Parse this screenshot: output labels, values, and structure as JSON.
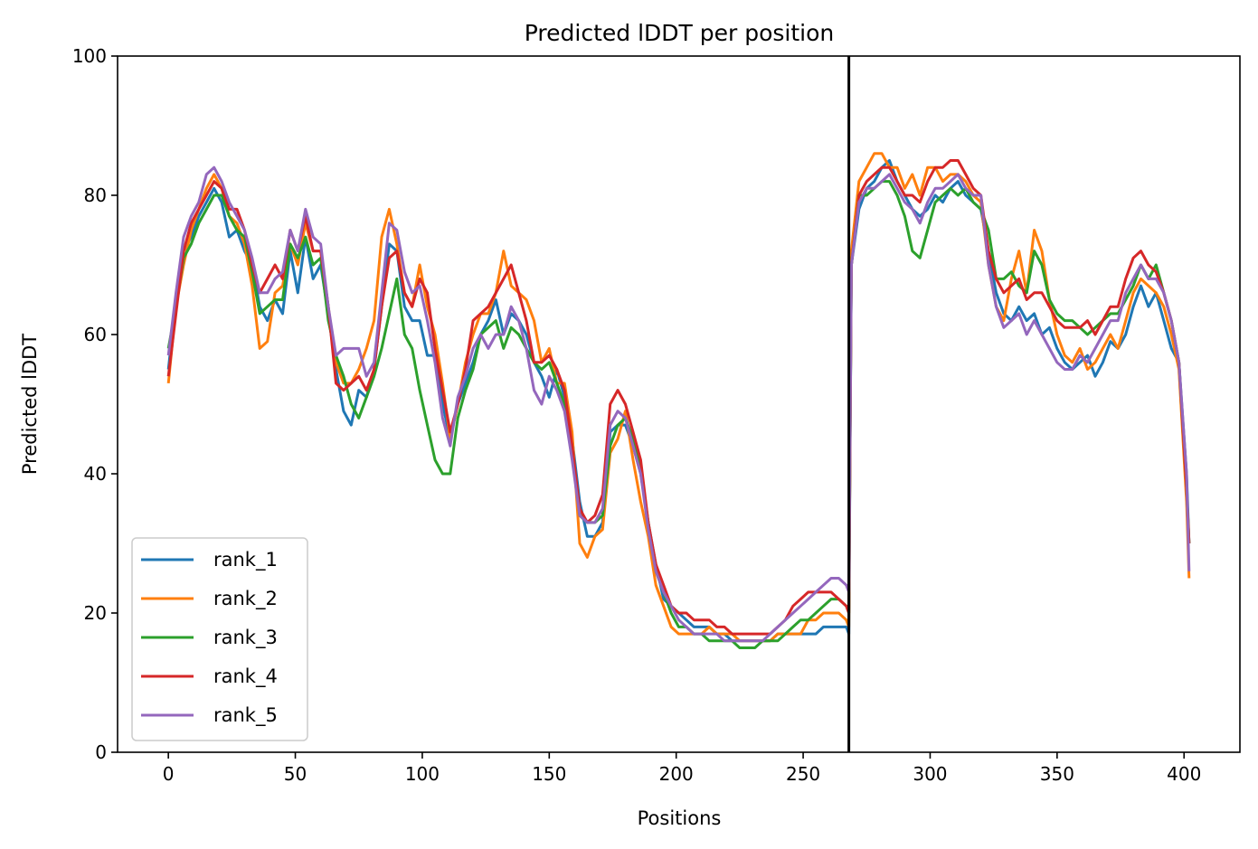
{
  "chart_data": {
    "type": "line",
    "title": "Predicted lDDT per position",
    "xlabel": "Positions",
    "ylabel": "Predicted lDDT",
    "xlim": [
      -20,
      422
    ],
    "ylim": [
      0,
      100
    ],
    "xticks": [
      0,
      50,
      100,
      150,
      200,
      250,
      300,
      350,
      400
    ],
    "yticks": [
      0,
      20,
      40,
      60,
      80,
      100
    ],
    "grid": false,
    "legend_position": "lower-left",
    "vline": {
      "x": 268,
      "color": "#000000"
    },
    "x": [
      0,
      3,
      6,
      9,
      12,
      15,
      18,
      21,
      24,
      27,
      30,
      33,
      36,
      39,
      42,
      45,
      48,
      51,
      54,
      57,
      60,
      63,
      66,
      69,
      72,
      75,
      78,
      81,
      84,
      87,
      90,
      93,
      96,
      99,
      102,
      105,
      108,
      111,
      114,
      117,
      120,
      123,
      126,
      129,
      132,
      135,
      138,
      141,
      144,
      147,
      150,
      153,
      156,
      159,
      162,
      165,
      168,
      171,
      174,
      177,
      180,
      183,
      186,
      189,
      192,
      195,
      198,
      201,
      204,
      207,
      210,
      213,
      216,
      219,
      222,
      225,
      228,
      231,
      234,
      237,
      240,
      243,
      246,
      249,
      252,
      255,
      258,
      261,
      264,
      267,
      268,
      269,
      272,
      275,
      278,
      281,
      284,
      287,
      290,
      293,
      296,
      299,
      302,
      305,
      308,
      311,
      314,
      317,
      320,
      323,
      326,
      329,
      332,
      335,
      338,
      341,
      344,
      347,
      350,
      353,
      356,
      359,
      362,
      365,
      368,
      371,
      374,
      377,
      380,
      383,
      386,
      389,
      392,
      395,
      398,
      401,
      402
    ],
    "series": [
      {
        "name": "rank_1",
        "color": "#1f77b4",
        "values": [
          55,
          65,
          72,
          74,
          77,
          79,
          81,
          79,
          74,
          75,
          72,
          70,
          64,
          62,
          65,
          63,
          72,
          66,
          74,
          68,
          70,
          63,
          55,
          49,
          47,
          52,
          51,
          55,
          64,
          73,
          72,
          64,
          62,
          62,
          57,
          57,
          50,
          45,
          50,
          53,
          56,
          60,
          62,
          65,
          60,
          63,
          62,
          60,
          56,
          54,
          51,
          55,
          51,
          45,
          36,
          31,
          31,
          33,
          46,
          47,
          47,
          44,
          40,
          33,
          27,
          22,
          21,
          20,
          19,
          18,
          18,
          18,
          17,
          17,
          16,
          16,
          16,
          16,
          16,
          16,
          17,
          17,
          17,
          17,
          17,
          17,
          18,
          18,
          18,
          18,
          17,
          70,
          78,
          81,
          82,
          84,
          85,
          82,
          80,
          78,
          77,
          78,
          80,
          79,
          81,
          82,
          80,
          79,
          78,
          72,
          66,
          63,
          62,
          64,
          62,
          63,
          60,
          61,
          58,
          56,
          55,
          56,
          57,
          54,
          56,
          59,
          58,
          60,
          64,
          67,
          64,
          66,
          62,
          58,
          56,
          40,
          30
        ]
      },
      {
        "name": "rank_2",
        "color": "#ff7f0e",
        "values": [
          53,
          64,
          70,
          75,
          78,
          81,
          83,
          81,
          77,
          76,
          73,
          67,
          58,
          59,
          66,
          67,
          73,
          70,
          76,
          72,
          72,
          64,
          56,
          53,
          53,
          55,
          58,
          62,
          74,
          78,
          73,
          66,
          64,
          70,
          64,
          60,
          53,
          45,
          50,
          56,
          60,
          63,
          63,
          66,
          72,
          67,
          66,
          65,
          62,
          56,
          58,
          53,
          53,
          46,
          30,
          28,
          31,
          32,
          43,
          45,
          49,
          42,
          36,
          31,
          24,
          21,
          18,
          17,
          17,
          17,
          17,
          18,
          17,
          17,
          17,
          16,
          16,
          16,
          16,
          16,
          17,
          17,
          17,
          17,
          19,
          19,
          20,
          20,
          20,
          19,
          18,
          72,
          82,
          84,
          86,
          86,
          84,
          84,
          81,
          83,
          80,
          84,
          84,
          82,
          83,
          83,
          82,
          80,
          79,
          70,
          64,
          62,
          68,
          72,
          66,
          75,
          72,
          65,
          60,
          57,
          56,
          58,
          55,
          56,
          58,
          60,
          58,
          62,
          66,
          68,
          67,
          66,
          64,
          60,
          55,
          36,
          25
        ]
      },
      {
        "name": "rank_3",
        "color": "#2ca02c",
        "values": [
          58,
          64,
          71,
          73,
          76,
          78,
          80,
          80,
          77,
          75,
          74,
          69,
          63,
          64,
          65,
          65,
          73,
          71,
          74,
          70,
          71,
          62,
          57,
          54,
          50,
          48,
          51,
          54,
          58,
          63,
          68,
          60,
          58,
          52,
          47,
          42,
          40,
          40,
          48,
          52,
          55,
          60,
          61,
          62,
          58,
          61,
          60,
          58,
          56,
          55,
          56,
          53,
          50,
          44,
          34,
          33,
          33,
          34,
          44,
          47,
          48,
          45,
          41,
          33,
          26,
          23,
          20,
          18,
          18,
          17,
          17,
          16,
          16,
          16,
          16,
          15,
          15,
          15,
          16,
          16,
          16,
          17,
          18,
          19,
          19,
          20,
          21,
          22,
          22,
          21,
          20,
          70,
          80,
          80,
          81,
          82,
          82,
          80,
          77,
          72,
          71,
          75,
          79,
          80,
          81,
          80,
          81,
          79,
          78,
          75,
          68,
          68,
          69,
          67,
          66,
          72,
          70,
          65,
          63,
          62,
          62,
          61,
          60,
          61,
          62,
          63,
          63,
          65,
          67,
          70,
          68,
          70,
          66,
          62,
          56,
          38,
          30
        ]
      },
      {
        "name": "rank_4",
        "color": "#d62728",
        "values": [
          54,
          63,
          72,
          76,
          78,
          80,
          82,
          81,
          78,
          78,
          75,
          70,
          66,
          68,
          70,
          68,
          75,
          72,
          77,
          72,
          72,
          64,
          53,
          52,
          53,
          54,
          52,
          55,
          64,
          71,
          72,
          66,
          64,
          68,
          66,
          58,
          52,
          46,
          50,
          55,
          62,
          63,
          64,
          66,
          68,
          70,
          66,
          62,
          56,
          56,
          57,
          55,
          52,
          44,
          35,
          33,
          34,
          37,
          50,
          52,
          50,
          46,
          42,
          33,
          27,
          24,
          21,
          20,
          20,
          19,
          19,
          19,
          18,
          18,
          17,
          17,
          17,
          17,
          17,
          17,
          18,
          19,
          21,
          22,
          23,
          23,
          23,
          23,
          22,
          21,
          20,
          70,
          80,
          82,
          83,
          84,
          84,
          82,
          80,
          80,
          79,
          82,
          84,
          84,
          85,
          85,
          83,
          81,
          80,
          72,
          68,
          66,
          67,
          68,
          65,
          66,
          66,
          64,
          62,
          61,
          61,
          61,
          62,
          60,
          62,
          64,
          64,
          68,
          71,
          72,
          70,
          69,
          66,
          62,
          56,
          38,
          30
        ]
      },
      {
        "name": "rank_5",
        "color": "#9467bd",
        "values": [
          57,
          66,
          74,
          77,
          79,
          83,
          84,
          82,
          79,
          77,
          75,
          71,
          66,
          66,
          68,
          69,
          75,
          72,
          78,
          74,
          73,
          64,
          57,
          58,
          58,
          58,
          54,
          56,
          66,
          76,
          75,
          69,
          66,
          67,
          62,
          56,
          48,
          44,
          51,
          54,
          58,
          60,
          58,
          60,
          60,
          64,
          62,
          58,
          52,
          50,
          54,
          52,
          49,
          42,
          34,
          33,
          33,
          35,
          47,
          49,
          48,
          44,
          40,
          32,
          26,
          23,
          21,
          19,
          18,
          17,
          17,
          17,
          17,
          16,
          16,
          16,
          16,
          16,
          16,
          17,
          18,
          19,
          20,
          21,
          22,
          23,
          24,
          25,
          25,
          24,
          23,
          70,
          79,
          81,
          81,
          82,
          83,
          81,
          79,
          78,
          76,
          79,
          81,
          81,
          82,
          83,
          81,
          80,
          80,
          70,
          64,
          61,
          62,
          63,
          60,
          62,
          60,
          58,
          56,
          55,
          55,
          57,
          56,
          58,
          60,
          62,
          62,
          66,
          68,
          70,
          68,
          68,
          66,
          62,
          56,
          40,
          26
        ]
      }
    ]
  }
}
